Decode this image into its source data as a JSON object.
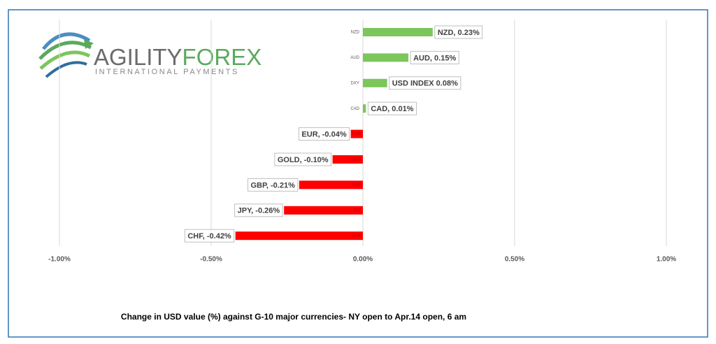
{
  "logo": {
    "word1": "AGILITY",
    "word2": "FOREX",
    "tagline": "INTERNATIONAL PAYMENTS"
  },
  "chart_data": {
    "type": "bar",
    "orientation": "horizontal",
    "categories": [
      "NZD",
      "AUD",
      "DXY",
      "CAD",
      "EUR",
      "GOLD",
      "GBP",
      "JPY",
      "CHF"
    ],
    "values": [
      0.23,
      0.15,
      0.08,
      0.01,
      -0.04,
      -0.1,
      -0.21,
      -0.26,
      -0.42
    ],
    "value_labels": [
      "NZD, 0.23%",
      "AUD, 0.15%",
      "USD INDEX 0.08%",
      "CAD, 0.01%",
      "EUR, -0.04%",
      "GOLD, -0.10%",
      "GBP, -0.21%",
      "JPY, -0.26%",
      "CHF, -0.42%"
    ],
    "positive_color": "#7cc65c",
    "negative_color": "#ff0000",
    "xlim": [
      -1,
      1
    ],
    "xticks": [
      {
        "value": -1,
        "label": "-1.00%"
      },
      {
        "value": -0.5,
        "label": "-0.50%"
      },
      {
        "value": 0,
        "label": "0.00%"
      },
      {
        "value": 0.5,
        "label": "0.50%"
      },
      {
        "value": 1,
        "label": "1.00%"
      }
    ],
    "grid": true,
    "caption": "Change in  USD value (%)  against  G-10 major currencies-  NY open to Apr.14 open, 6 am"
  }
}
